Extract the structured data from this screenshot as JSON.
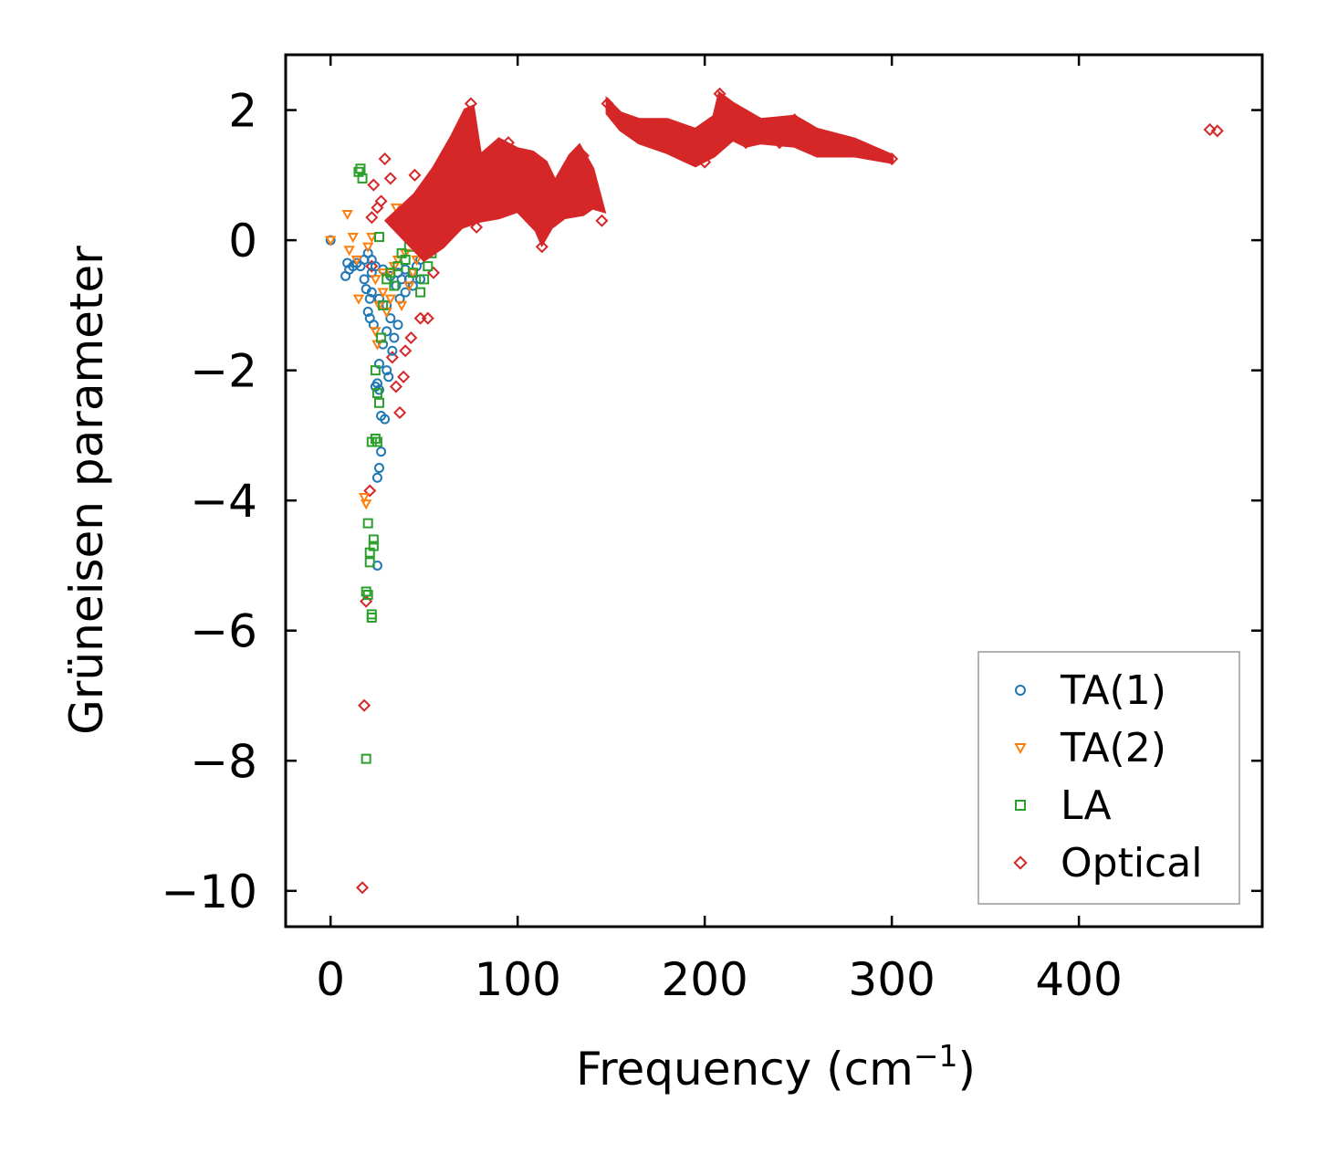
{
  "chart_data": {
    "type": "scatter",
    "title": "",
    "xlabel": "Frequency (cm",
    "xlabel_sup": "−1",
    "xlabel_end": ")",
    "ylabel": "Grüneisen parameter",
    "xlim": [
      -24,
      498
    ],
    "ylim": [
      -10.55,
      2.85
    ],
    "x_ticks": [
      0,
      100,
      200,
      300,
      400
    ],
    "x_tick_labels": [
      "0",
      "100",
      "200",
      "300",
      "400"
    ],
    "y_ticks": [
      2,
      0,
      -2,
      -4,
      -6,
      -8,
      -10
    ],
    "y_tick_labels": [
      "2",
      "0",
      "−2",
      "−4",
      "−6",
      "−8",
      "−10"
    ],
    "grid": false,
    "legend_position": "lower-right",
    "series": [
      {
        "name": "TA(1)",
        "label": "TA(1)",
        "marker": "circle",
        "color": "#1f77b4",
        "points": [
          [
            0,
            0
          ],
          [
            8,
            -0.55
          ],
          [
            9,
            -0.35
          ],
          [
            10,
            -0.45
          ],
          [
            12,
            -0.4
          ],
          [
            14,
            -0.35
          ],
          [
            16,
            -0.4
          ],
          [
            18,
            -0.3
          ],
          [
            18,
            -0.6
          ],
          [
            19,
            -0.75
          ],
          [
            20,
            -0.2
          ],
          [
            20,
            -1.1
          ],
          [
            21,
            -0.9
          ],
          [
            21,
            -1.2
          ],
          [
            22,
            -0.5
          ],
          [
            22,
            -0.3
          ],
          [
            23,
            -1.3
          ],
          [
            24,
            -0.4
          ],
          [
            24,
            -2.25
          ],
          [
            25,
            -2.2
          ],
          [
            25,
            -3.65
          ],
          [
            25,
            -5.0
          ],
          [
            26,
            -2.3
          ],
          [
            26,
            -3.5
          ],
          [
            26,
            -1.9
          ],
          [
            27,
            -2.7
          ],
          [
            27,
            -3.25
          ],
          [
            28,
            -1.6
          ],
          [
            29,
            -2.75
          ],
          [
            30,
            -1.4
          ],
          [
            30,
            -2.0
          ],
          [
            31,
            -2.1
          ],
          [
            32,
            -1.2
          ],
          [
            33,
            -1.7
          ],
          [
            34,
            -1.5
          ],
          [
            35,
            -0.7
          ],
          [
            36,
            -1.3
          ],
          [
            37,
            -0.9
          ],
          [
            38,
            -0.6
          ],
          [
            40,
            -0.8
          ],
          [
            42,
            -0.6
          ],
          [
            44,
            -0.5
          ],
          [
            46,
            -0.4
          ],
          [
            48,
            -0.3
          ],
          [
            50,
            -0.2
          ],
          [
            52,
            -0.15
          ],
          [
            28,
            -0.45
          ],
          [
            32,
            -0.55
          ],
          [
            36,
            -0.5
          ],
          [
            40,
            -0.45
          ],
          [
            44,
            -0.7
          ],
          [
            48,
            -0.6
          ],
          [
            22,
            -0.8
          ],
          [
            26,
            -0.9
          ],
          [
            30,
            -1.0
          ]
        ]
      },
      {
        "name": "TA(2)",
        "label": "TA(2)",
        "marker": "triangle-down",
        "color": "#ff7f0e",
        "points": [
          [
            0,
            0
          ],
          [
            9,
            0.4
          ],
          [
            10,
            -0.15
          ],
          [
            12,
            0.05
          ],
          [
            14,
            -0.3
          ],
          [
            15,
            -0.9
          ],
          [
            18,
            -3.95
          ],
          [
            19,
            -4.05
          ],
          [
            20,
            -0.1
          ],
          [
            22,
            0.05
          ],
          [
            24,
            -0.6
          ],
          [
            25,
            -1.6
          ],
          [
            26,
            -1.0
          ],
          [
            28,
            -0.8
          ],
          [
            30,
            -1.1
          ],
          [
            32,
            -0.5
          ],
          [
            34,
            -0.4
          ],
          [
            35,
            0.5
          ],
          [
            36,
            -0.3
          ],
          [
            38,
            -1.0
          ],
          [
            40,
            -0.2
          ],
          [
            42,
            -0.7
          ],
          [
            44,
            -0.5
          ],
          [
            46,
            -0.3
          ],
          [
            28,
            -0.5
          ],
          [
            32,
            -0.9
          ],
          [
            24,
            -1.4
          ]
        ]
      },
      {
        "name": "LA",
        "label": "LA",
        "marker": "square",
        "color": "#2ca02c",
        "points": [
          [
            15,
            1.05
          ],
          [
            16,
            1.1
          ],
          [
            17,
            0.95
          ],
          [
            19,
            -7.97
          ],
          [
            19,
            -5.4
          ],
          [
            20,
            -5.45
          ],
          [
            20,
            -4.35
          ],
          [
            21,
            -4.8
          ],
          [
            21,
            -4.95
          ],
          [
            22,
            -3.1
          ],
          [
            22,
            -5.75
          ],
          [
            22,
            -5.8
          ],
          [
            23,
            -4.6
          ],
          [
            23,
            -4.7
          ],
          [
            24,
            -3.05
          ],
          [
            24,
            -2.0
          ],
          [
            25,
            -3.1
          ],
          [
            25,
            -2.35
          ],
          [
            26,
            -2.5
          ],
          [
            26,
            0.05
          ],
          [
            27,
            -1.5
          ],
          [
            28,
            -1.0
          ],
          [
            30,
            -0.6
          ],
          [
            32,
            -0.5
          ],
          [
            34,
            -0.7
          ],
          [
            36,
            -0.4
          ],
          [
            38,
            -0.2
          ],
          [
            40,
            -0.3
          ],
          [
            42,
            -0.1
          ],
          [
            44,
            -0.5
          ],
          [
            46,
            0.3
          ],
          [
            48,
            -0.8
          ],
          [
            50,
            -0.6
          ],
          [
            52,
            -0.4
          ],
          [
            54,
            -0.2
          ]
        ]
      },
      {
        "name": "Optical",
        "label": "Optical",
        "marker": "diamond",
        "color": "#d62728",
        "points": [
          [
            17,
            -9.95
          ],
          [
            18,
            -7.15
          ],
          [
            19,
            -5.55
          ],
          [
            21,
            -3.85
          ],
          [
            22,
            -0.4
          ],
          [
            22,
            0.35
          ],
          [
            23,
            0.85
          ],
          [
            25,
            0.5
          ],
          [
            27,
            0.6
          ],
          [
            29,
            1.25
          ],
          [
            32,
            0.95
          ],
          [
            33,
            -1.8
          ],
          [
            35,
            -2.25
          ],
          [
            37,
            -2.65
          ],
          [
            39,
            -2.1
          ],
          [
            40,
            -1.7
          ],
          [
            43,
            -1.5
          ],
          [
            45,
            1.0
          ],
          [
            48,
            -1.2
          ],
          [
            48,
            0.6
          ],
          [
            52,
            -1.2
          ],
          [
            55,
            -0.5
          ],
          [
            60,
            0.2
          ],
          [
            65,
            0.5
          ],
          [
            70,
            0.9
          ],
          [
            75,
            2.1
          ],
          [
            75,
            1.4
          ],
          [
            78,
            0.2
          ],
          [
            80,
            1.0
          ],
          [
            85,
            0.4
          ],
          [
            90,
            1.2
          ],
          [
            95,
            1.5
          ],
          [
            100,
            0.8
          ],
          [
            105,
            0.5
          ],
          [
            110,
            1.2
          ],
          [
            113,
            -0.1
          ],
          [
            115,
            0.5
          ],
          [
            120,
            0.3
          ],
          [
            125,
            0.7
          ],
          [
            130,
            0.9
          ],
          [
            135,
            1.3
          ],
          [
            140,
            0.7
          ],
          [
            145,
            0.3
          ],
          [
            148,
            2.1
          ],
          [
            155,
            1.8
          ],
          [
            160,
            1.7
          ],
          [
            170,
            1.6
          ],
          [
            180,
            1.5
          ],
          [
            190,
            1.4
          ],
          [
            200,
            1.2
          ],
          [
            205,
            1.6
          ],
          [
            208,
            2.25
          ],
          [
            215,
            2.0
          ],
          [
            222,
            1.5
          ],
          [
            230,
            1.6
          ],
          [
            240,
            1.5
          ],
          [
            248,
            1.85
          ],
          [
            255,
            1.6
          ],
          [
            260,
            1.4
          ],
          [
            270,
            1.5
          ],
          [
            280,
            1.45
          ],
          [
            290,
            1.35
          ],
          [
            300,
            1.25
          ],
          [
            470,
            1.7
          ],
          [
            474,
            1.68
          ]
        ]
      }
    ]
  }
}
